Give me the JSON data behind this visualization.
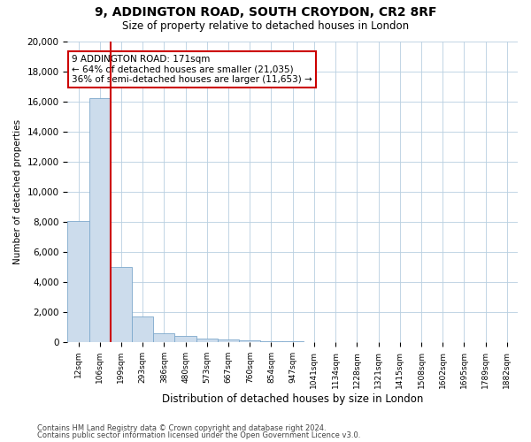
{
  "title1": "9, ADDINGTON ROAD, SOUTH CROYDON, CR2 8RF",
  "title2": "Size of property relative to detached houses in London",
  "xlabel": "Distribution of detached houses by size in London",
  "ylabel": "Number of detached properties",
  "categories": [
    "12sqm",
    "106sqm",
    "199sqm",
    "293sqm",
    "386sqm",
    "480sqm",
    "573sqm",
    "667sqm",
    "760sqm",
    "854sqm",
    "947sqm",
    "1041sqm",
    "1134sqm",
    "1228sqm",
    "1321sqm",
    "1415sqm",
    "1508sqm",
    "1602sqm",
    "1695sqm",
    "1789sqm",
    "1882sqm"
  ],
  "bar_values": [
    8050,
    16200,
    5000,
    1700,
    600,
    390,
    250,
    190,
    130,
    90,
    55,
    30,
    20,
    12,
    8,
    5,
    3,
    2,
    1,
    1,
    0
  ],
  "bar_color": "#ccdcec",
  "bar_edge_color": "#7da8cc",
  "property_bar_index": 1,
  "property_line_color": "#cc0000",
  "annotation_text": "9 ADDINGTON ROAD: 171sqm\n← 64% of detached houses are smaller (21,035)\n36% of semi-detached houses are larger (11,653) →",
  "annotation_box_color": "#cc0000",
  "annotation_fontsize": 7.5,
  "ylim": [
    0,
    20000
  ],
  "yticks": [
    0,
    2000,
    4000,
    6000,
    8000,
    10000,
    12000,
    14000,
    16000,
    18000,
    20000
  ],
  "footer1": "Contains HM Land Registry data © Crown copyright and database right 2024.",
  "footer2": "Contains public sector information licensed under the Open Government Licence v3.0.",
  "bg_color": "#ffffff",
  "grid_color": "#b8cfe0",
  "title1_fontsize": 10,
  "title2_fontsize": 8.5,
  "ylabel_fontsize": 7.5,
  "xlabel_fontsize": 8.5
}
